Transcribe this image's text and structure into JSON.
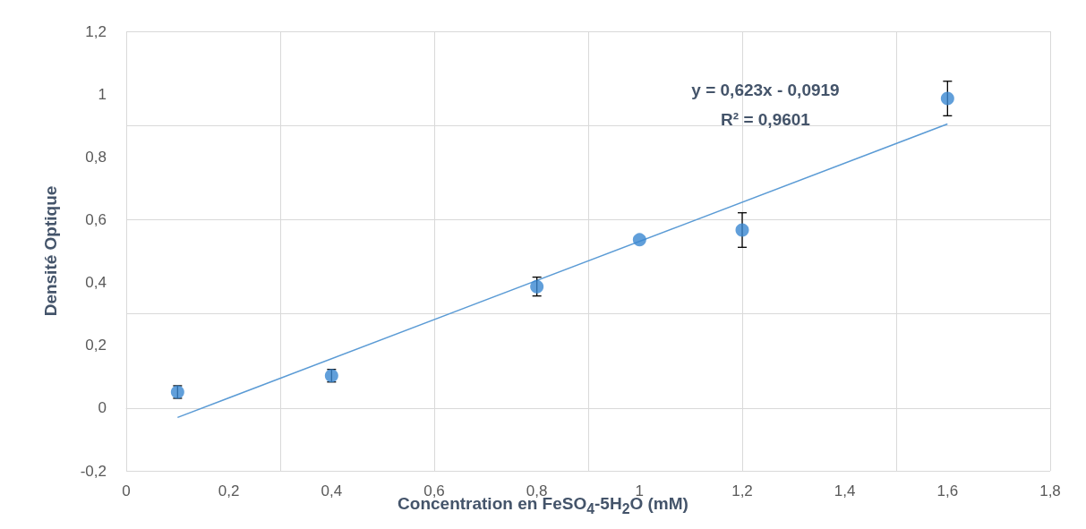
{
  "chart_data": {
    "type": "scatter",
    "xlabel": "Concentration en FeSO$_{4}$-5H$_{2}$O (mM)",
    "ylabel": "Densité Optique",
    "x": [
      0.1,
      0.4,
      0.8,
      1.0,
      1.2,
      1.6
    ],
    "series": [
      {
        "color": "#3a87d1",
        "marker": "circle",
        "values": [
          0.051,
          0.103,
          0.387,
          0.536,
          0.567,
          0.986
        ],
        "errors": [
          0.02,
          0.02,
          0.03,
          null,
          0.055,
          0.055
        ]
      },
      {
        "type": "line",
        "color": "#5b9bd5",
        "marker": "none",
        "x": [
          0.1,
          1.6
        ],
        "values": [
          -0.03,
          0.905
        ]
      }
    ],
    "annotations": [
      "y = 0,623x - 0,0919",
      "R² = 0,9601"
    ],
    "xlim": [
      0,
      1.8
    ],
    "xticks": [
      {
        "value": 0,
        "label": "0"
      },
      {
        "value": 0.2,
        "label": "0,2"
      },
      {
        "value": 0.4,
        "label": "0,4"
      },
      {
        "value": 0.6,
        "label": "0,6"
      },
      {
        "value": 0.8,
        "label": "0,8"
      },
      {
        "value": 1,
        "label": "1"
      },
      {
        "value": 1.2,
        "label": "1,2"
      },
      {
        "value": 1.4,
        "label": "1,4"
      },
      {
        "value": 1.6,
        "label": "1,6"
      },
      {
        "value": 1.8,
        "label": "1,8"
      }
    ],
    "ylim": [
      -0.2,
      1.2
    ],
    "yticks": [
      {
        "value": -0.2,
        "label": "-0,2"
      },
      {
        "value": 0,
        "label": "0"
      },
      {
        "value": 0.2,
        "label": "0,2"
      },
      {
        "value": 0.4,
        "label": "0,4"
      },
      {
        "value": 0.6,
        "label": "0,6"
      },
      {
        "value": 0.8,
        "label": "0,8"
      },
      {
        "value": 1,
        "label": "1"
      },
      {
        "value": 1.2,
        "label": "1,2"
      }
    ],
    "grid": true
  }
}
